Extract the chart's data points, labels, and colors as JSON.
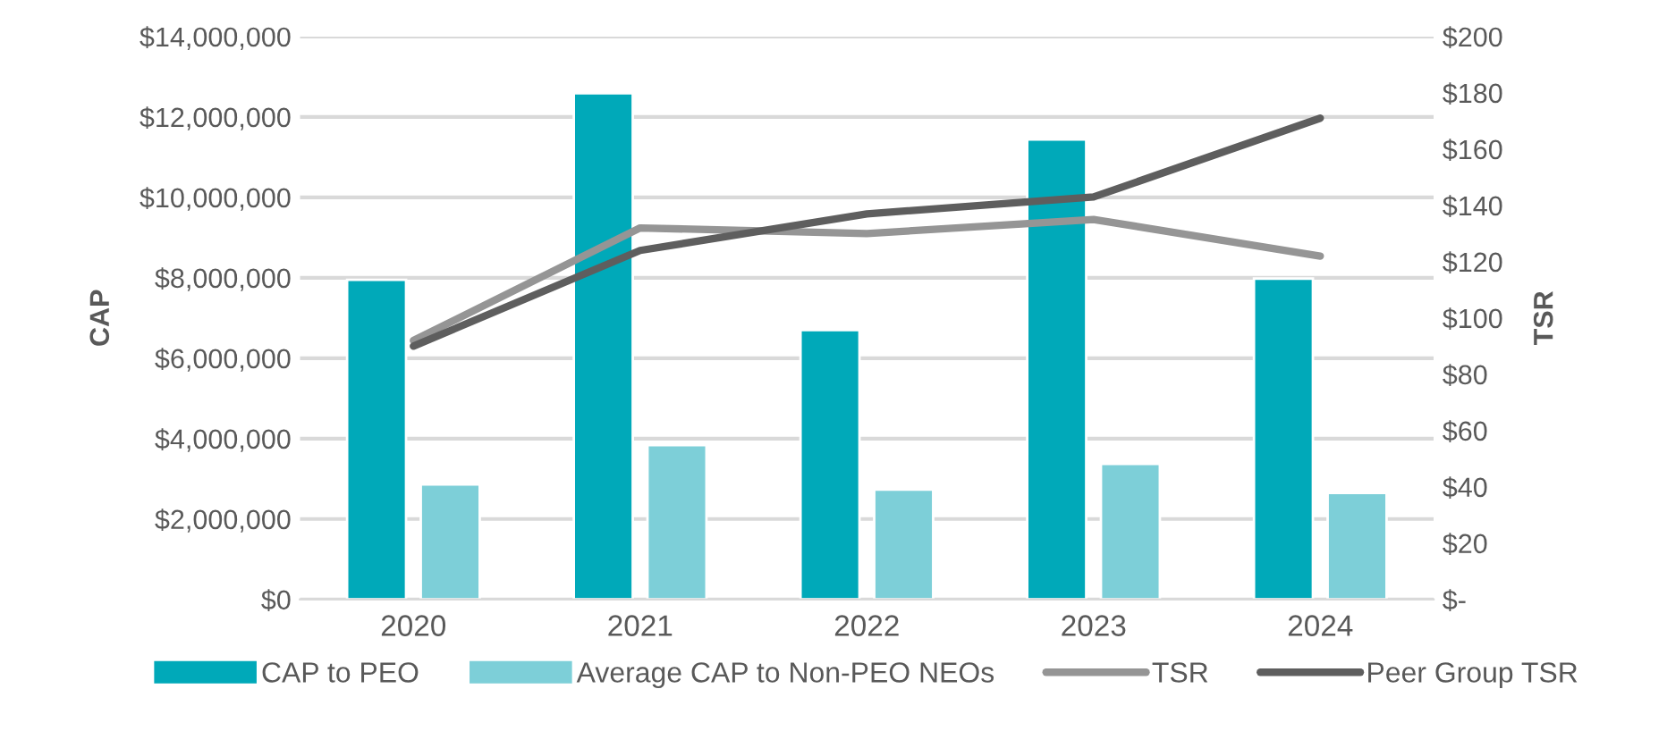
{
  "chart_data": {
    "type": "bar",
    "categories": [
      "2020",
      "2021",
      "2022",
      "2023",
      "2024"
    ],
    "ylabel": "CAP",
    "y2label": "TSR",
    "series": [
      {
        "name": "CAP to PEO",
        "color": "#00a9b9",
        "values": [
          7950000,
          12590000,
          6700000,
          11440000,
          7980000
        ]
      },
      {
        "name": "Average CAP to Non-PEO NEOs",
        "color": "#7dcfd8",
        "values": [
          2860000,
          3840000,
          2730000,
          3370000,
          2650000
        ]
      },
      {
        "name": "TSR",
        "type": "line",
        "axis": "y2",
        "color": "#959595",
        "values": [
          92,
          132,
          130,
          135,
          122
        ]
      },
      {
        "name": "Peer Group TSR",
        "type": "line",
        "axis": "y2",
        "color": "#5e5e5e",
        "values": [
          90,
          124,
          137,
          143,
          171
        ]
      }
    ],
    "ylim": [
      0,
      14000000
    ],
    "yticks": [
      {
        "value": 0,
        "label": "$0"
      },
      {
        "value": 2000000,
        "label": "$2,000,000"
      },
      {
        "value": 4000000,
        "label": "$4,000,000"
      },
      {
        "value": 6000000,
        "label": "$6,000,000"
      },
      {
        "value": 8000000,
        "label": "$8,000,000"
      },
      {
        "value": 10000000,
        "label": "$10,000,000"
      },
      {
        "value": 12000000,
        "label": "$12,000,000"
      },
      {
        "value": 14000000,
        "label": "$14,000,000"
      }
    ],
    "y2lim": [
      0,
      200
    ],
    "y2ticks": [
      {
        "value": 0,
        "label": "$-"
      },
      {
        "value": 20,
        "label": "$20"
      },
      {
        "value": 40,
        "label": "$40"
      },
      {
        "value": 60,
        "label": "$60"
      },
      {
        "value": 80,
        "label": "$80"
      },
      {
        "value": 100,
        "label": "$100"
      },
      {
        "value": 120,
        "label": "$120"
      },
      {
        "value": 140,
        "label": "$140"
      },
      {
        "value": 160,
        "label": "$160"
      },
      {
        "value": 180,
        "label": "$180"
      },
      {
        "value": 200,
        "label": "$200"
      }
    ],
    "grid": "y",
    "legend": "bottom",
    "marker": "none",
    "line_style": "solid"
  }
}
